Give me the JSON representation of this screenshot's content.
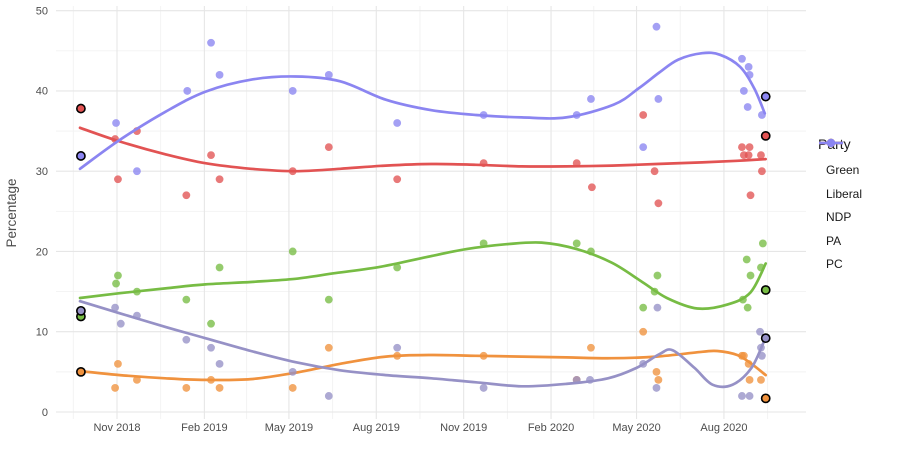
{
  "figure": {
    "background": "#ffffff",
    "axis": {
      "y_label": "Percentage",
      "text_color": "#4d4d4d",
      "grid_major_color": "#e6e6e6",
      "grid_minor_color": "#f2f2f2"
    },
    "legend": {
      "title": "Party",
      "entries": [
        {
          "label": "Green",
          "color": "#77bc44"
        },
        {
          "label": "Liberal",
          "color": "#e25353"
        },
        {
          "label": "NDP",
          "color": "#f0923e"
        },
        {
          "label": "PA",
          "color": "#9691c6"
        },
        {
          "label": "PC",
          "color": "#8b85f1"
        }
      ]
    }
  },
  "chart_data": {
    "type": "scatter",
    "title": "",
    "xlabel": "",
    "ylabel": "Percentage",
    "ylim": [
      0,
      50
    ],
    "y_major_ticks": [
      0,
      10,
      20,
      30,
      40,
      50
    ],
    "y_minor_ticks": [
      5,
      15,
      25,
      35,
      45
    ],
    "x_ticks": [
      {
        "date": "2018-11-01",
        "label": "Nov 2018"
      },
      {
        "date": "2019-02-01",
        "label": "Feb 2019"
      },
      {
        "date": "2019-05-01",
        "label": "May 2019"
      },
      {
        "date": "2019-08-01",
        "label": "Aug 2019"
      },
      {
        "date": "2019-11-01",
        "label": "Nov 2019"
      },
      {
        "date": "2020-02-01",
        "label": "Feb 2020"
      },
      {
        "date": "2020-05-01",
        "label": "May 2020"
      },
      {
        "date": "2020-08-01",
        "label": "Aug 2020"
      }
    ],
    "legend_position": "right",
    "grid": true,
    "note_elections_outlined": "black-ringed points are the 2018-09-24 and 2020-09-14 NB election results",
    "series": [
      {
        "name": "Green",
        "color": "#77bc44",
        "polls": [
          [
            "2018-10-31",
            16
          ],
          [
            "2018-11-02",
            17
          ],
          [
            "2018-11-22",
            15
          ],
          [
            "2019-01-13",
            14
          ],
          [
            "2019-02-08",
            11
          ],
          [
            "2019-02-17",
            18
          ],
          [
            "2019-05-05",
            20
          ],
          [
            "2019-06-12",
            14
          ],
          [
            "2019-08-23",
            18
          ],
          [
            "2019-11-22",
            21
          ],
          [
            "2020-02-28",
            21
          ],
          [
            "2020-03-14",
            20
          ],
          [
            "2020-05-08",
            13
          ],
          [
            "2020-05-20",
            15
          ],
          [
            "2020-05-23",
            17
          ],
          [
            "2020-08-21",
            14
          ],
          [
            "2020-08-25",
            19
          ],
          [
            "2020-08-26",
            13
          ],
          [
            "2020-08-29",
            17
          ],
          [
            "2020-09-09",
            18
          ],
          [
            "2020-09-11",
            21
          ]
        ],
        "elections": [
          [
            "2018-09-24",
            11.9
          ],
          [
            "2020-09-14",
            15.2
          ]
        ],
        "trend": [
          [
            "2018-09-23",
            14.2
          ],
          [
            "2018-11-04",
            14.8
          ],
          [
            "2018-12-22",
            15.4
          ],
          [
            "2019-02-02",
            15.9
          ],
          [
            "2019-03-22",
            16.2
          ],
          [
            "2019-05-08",
            16.6
          ],
          [
            "2019-06-19",
            17.3
          ],
          [
            "2019-08-06",
            18.1
          ],
          [
            "2019-09-23",
            19.3
          ],
          [
            "2019-11-04",
            20.3
          ],
          [
            "2019-12-16",
            20.9
          ],
          [
            "2020-01-22",
            21.1
          ],
          [
            "2020-02-28",
            20.3
          ],
          [
            "2020-04-05",
            18.6
          ],
          [
            "2020-05-07",
            16.2
          ],
          [
            "2020-06-02",
            14.2
          ],
          [
            "2020-07-04",
            12.9
          ],
          [
            "2020-08-05",
            13.4
          ],
          [
            "2020-08-29",
            14.9
          ],
          [
            "2020-09-14",
            18.5
          ]
        ]
      },
      {
        "name": "Liberal",
        "color": "#e25353",
        "polls": [
          [
            "2018-10-30",
            34
          ],
          [
            "2018-11-02",
            29
          ],
          [
            "2018-11-22",
            35
          ],
          [
            "2019-01-13",
            27
          ],
          [
            "2019-02-08",
            32
          ],
          [
            "2019-02-17",
            29
          ],
          [
            "2019-05-05",
            30
          ],
          [
            "2019-06-12",
            33
          ],
          [
            "2019-08-23",
            29
          ],
          [
            "2019-11-22",
            31
          ],
          [
            "2020-02-28",
            31
          ],
          [
            "2020-03-15",
            28
          ],
          [
            "2020-05-08",
            37
          ],
          [
            "2020-05-20",
            30
          ],
          [
            "2020-05-24",
            26
          ],
          [
            "2020-08-20",
            33
          ],
          [
            "2020-08-22",
            32
          ],
          [
            "2020-08-27",
            32
          ],
          [
            "2020-08-28",
            33
          ],
          [
            "2020-08-29",
            27
          ],
          [
            "2020-09-09",
            32
          ],
          [
            "2020-09-10",
            30
          ]
        ],
        "elections": [
          [
            "2018-09-24",
            37.8
          ],
          [
            "2020-09-14",
            34.4
          ]
        ],
        "trend": [
          [
            "2018-09-23",
            35.4
          ],
          [
            "2018-11-04",
            33.7
          ],
          [
            "2018-12-22",
            32.1
          ],
          [
            "2019-02-02",
            31.0
          ],
          [
            "2019-03-22",
            30.3
          ],
          [
            "2019-05-08",
            30.0
          ],
          [
            "2019-06-24",
            30.3
          ],
          [
            "2019-08-11",
            30.7
          ],
          [
            "2019-09-28",
            30.9
          ],
          [
            "2019-11-14",
            30.8
          ],
          [
            "2020-01-01",
            30.6
          ],
          [
            "2020-02-17",
            30.6
          ],
          [
            "2020-04-05",
            30.7
          ],
          [
            "2020-05-22",
            30.9
          ],
          [
            "2020-07-09",
            31.1
          ],
          [
            "2020-08-15",
            31.3
          ],
          [
            "2020-09-14",
            31.5
          ]
        ]
      },
      {
        "name": "NDP",
        "color": "#f0923e",
        "polls": [
          [
            "2018-10-30",
            3
          ],
          [
            "2018-11-02",
            6
          ],
          [
            "2018-11-22",
            4
          ],
          [
            "2019-01-13",
            3
          ],
          [
            "2019-02-08",
            4
          ],
          [
            "2019-02-17",
            3
          ],
          [
            "2019-05-05",
            3
          ],
          [
            "2019-06-12",
            8
          ],
          [
            "2019-08-23",
            7
          ],
          [
            "2019-11-22",
            7
          ],
          [
            "2020-02-28",
            4
          ],
          [
            "2020-03-14",
            8
          ],
          [
            "2020-05-08",
            10
          ],
          [
            "2020-05-22",
            5
          ],
          [
            "2020-05-24",
            4
          ],
          [
            "2020-08-20",
            7
          ],
          [
            "2020-08-22",
            7
          ],
          [
            "2020-08-27",
            6
          ],
          [
            "2020-08-28",
            4
          ],
          [
            "2020-09-09",
            4
          ]
        ],
        "elections": [
          [
            "2018-09-24",
            5
          ],
          [
            "2020-09-14",
            1.7
          ]
        ],
        "trend": [
          [
            "2018-09-23",
            5.1
          ],
          [
            "2018-11-04",
            4.6
          ],
          [
            "2018-12-22",
            4.2
          ],
          [
            "2019-02-02",
            4.0
          ],
          [
            "2019-03-22",
            4.1
          ],
          [
            "2019-05-08",
            4.9
          ],
          [
            "2019-06-24",
            6.0
          ],
          [
            "2019-08-11",
            6.9
          ],
          [
            "2019-09-28",
            7.1
          ],
          [
            "2019-11-14",
            7.0
          ],
          [
            "2020-01-01",
            6.9
          ],
          [
            "2020-02-17",
            6.8
          ],
          [
            "2020-04-05",
            6.7
          ],
          [
            "2020-05-22",
            6.9
          ],
          [
            "2020-07-09",
            7.5
          ],
          [
            "2020-07-25",
            7.6
          ],
          [
            "2020-08-15",
            7.1
          ],
          [
            "2020-08-30",
            6.0
          ],
          [
            "2020-09-14",
            4.6
          ]
        ]
      },
      {
        "name": "PA",
        "color": "#9691c6",
        "polls": [
          [
            "2018-10-30",
            13
          ],
          [
            "2018-11-05",
            11
          ],
          [
            "2018-11-22",
            12
          ],
          [
            "2019-01-13",
            9
          ],
          [
            "2019-02-08",
            8
          ],
          [
            "2019-02-17",
            6
          ],
          [
            "2019-05-05",
            5
          ],
          [
            "2019-06-12",
            2
          ],
          [
            "2019-08-23",
            8
          ],
          [
            "2019-11-22",
            3
          ],
          [
            "2020-02-28",
            4
          ],
          [
            "2020-03-13",
            4
          ],
          [
            "2020-05-08",
            6
          ],
          [
            "2020-05-22",
            3
          ],
          [
            "2020-05-23",
            13
          ],
          [
            "2020-08-20",
            2
          ],
          [
            "2020-08-28",
            2
          ],
          [
            "2020-09-08",
            10
          ],
          [
            "2020-09-09",
            8
          ],
          [
            "2020-09-10",
            7
          ]
        ],
        "elections": [
          [
            "2018-09-24",
            12.6
          ],
          [
            "2020-09-14",
            9.2
          ]
        ],
        "trend": [
          [
            "2018-09-23",
            13.8
          ],
          [
            "2018-11-04",
            12.3
          ],
          [
            "2018-12-22",
            10.6
          ],
          [
            "2019-02-02",
            9.2
          ],
          [
            "2019-03-22",
            7.6
          ],
          [
            "2019-05-08",
            6.2
          ],
          [
            "2019-06-24",
            5.2
          ],
          [
            "2019-08-11",
            4.6
          ],
          [
            "2019-09-28",
            4.2
          ],
          [
            "2019-11-14",
            3.7
          ],
          [
            "2020-01-01",
            3.2
          ],
          [
            "2020-02-17",
            3.5
          ],
          [
            "2020-04-01",
            4.2
          ],
          [
            "2020-05-01",
            5.5
          ],
          [
            "2020-05-25",
            7.2
          ],
          [
            "2020-06-08",
            7.7
          ],
          [
            "2020-07-01",
            5.5
          ],
          [
            "2020-07-20",
            3.4
          ],
          [
            "2020-08-10",
            3.4
          ],
          [
            "2020-08-30",
            5.5
          ],
          [
            "2020-09-14",
            9.3
          ]
        ]
      },
      {
        "name": "PC",
        "color": "#8b85f1",
        "polls": [
          [
            "2018-10-31",
            36
          ],
          [
            "2018-11-22",
            30
          ],
          [
            "2019-01-14",
            40
          ],
          [
            "2019-02-08",
            46
          ],
          [
            "2019-02-17",
            42
          ],
          [
            "2019-05-05",
            40
          ],
          [
            "2019-06-12",
            42
          ],
          [
            "2019-08-23",
            36
          ],
          [
            "2019-11-22",
            37
          ],
          [
            "2020-02-28",
            37
          ],
          [
            "2020-03-14",
            39
          ],
          [
            "2020-05-08",
            33
          ],
          [
            "2020-05-22",
            48
          ],
          [
            "2020-05-24",
            39
          ],
          [
            "2020-08-20",
            44
          ],
          [
            "2020-08-22",
            40
          ],
          [
            "2020-08-26",
            38
          ],
          [
            "2020-08-27",
            43
          ],
          [
            "2020-08-28",
            42
          ],
          [
            "2020-09-10",
            37
          ]
        ],
        "elections": [
          [
            "2018-09-24",
            31.9
          ],
          [
            "2020-09-14",
            39.3
          ]
        ],
        "trend": [
          [
            "2018-09-23",
            30.3
          ],
          [
            "2018-11-04",
            33.9
          ],
          [
            "2018-12-22",
            37.4
          ],
          [
            "2019-02-02",
            39.9
          ],
          [
            "2019-03-22",
            41.4
          ],
          [
            "2019-05-08",
            41.8
          ],
          [
            "2019-06-24",
            41.2
          ],
          [
            "2019-08-11",
            38.9
          ],
          [
            "2019-09-28",
            37.6
          ],
          [
            "2019-11-14",
            37.0
          ],
          [
            "2020-01-01",
            36.7
          ],
          [
            "2020-02-17",
            36.7
          ],
          [
            "2020-04-07",
            38.3
          ],
          [
            "2020-05-03",
            40.3
          ],
          [
            "2020-05-25",
            42.3
          ],
          [
            "2020-06-14",
            43.9
          ],
          [
            "2020-07-09",
            44.7
          ],
          [
            "2020-07-28",
            44.5
          ],
          [
            "2020-08-18",
            43.0
          ],
          [
            "2020-09-02",
            40.3
          ],
          [
            "2020-09-13",
            37.2
          ]
        ]
      }
    ]
  }
}
